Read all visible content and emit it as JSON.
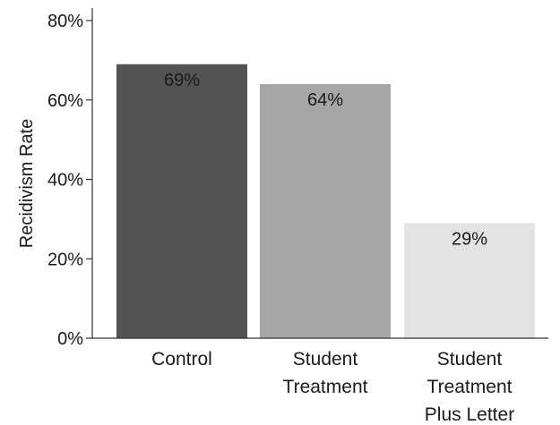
{
  "chart_data": {
    "type": "bar",
    "title": "",
    "xlabel": "",
    "ylabel": "Recidivism Rate",
    "ylim": [
      0,
      80
    ],
    "y_ticks": [
      0,
      20,
      40,
      60,
      80
    ],
    "y_tick_labels": [
      "0%",
      "20%",
      "40%",
      "60%",
      "80%"
    ],
    "categories": [
      [
        "Control"
      ],
      [
        "Student",
        "Treatment"
      ],
      [
        "Student",
        "Treatment",
        "Plus Letter"
      ]
    ],
    "values": [
      69,
      64,
      29
    ],
    "value_labels": [
      "69%",
      "64%",
      "29%"
    ],
    "bar_colors": [
      "#535455",
      "#a5a6a8",
      "#e2e3e4"
    ],
    "grid": false,
    "legend": "none"
  }
}
